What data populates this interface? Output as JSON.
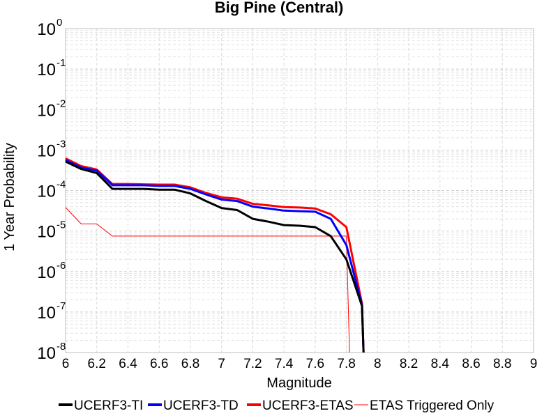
{
  "chart_data": {
    "type": "line",
    "title": "Big Pine (Central)",
    "xlabel": "Magnitude",
    "ylabel": "1 Year Probability",
    "xlim": [
      6,
      9
    ],
    "ylim": [
      1e-08,
      1
    ],
    "yscale": "log",
    "grid": true,
    "legend": "bottom",
    "x_ticks": [
      "6",
      "6.2",
      "6.4",
      "6.6",
      "6.8",
      "7",
      "7.2",
      "7.4",
      "7.6",
      "7.8",
      "8",
      "8.2",
      "8.4",
      "8.6",
      "8.8",
      "9"
    ],
    "y_ticks": [
      {
        "base": "10",
        "exp": "0"
      },
      {
        "base": "10",
        "exp": "-1"
      },
      {
        "base": "10",
        "exp": "-2"
      },
      {
        "base": "10",
        "exp": "-3"
      },
      {
        "base": "10",
        "exp": "-4"
      },
      {
        "base": "10",
        "exp": "-5"
      },
      {
        "base": "10",
        "exp": "-6"
      },
      {
        "base": "10",
        "exp": "-7"
      },
      {
        "base": "10",
        "exp": "-8"
      }
    ],
    "series": [
      {
        "name": "UCERF3-TI",
        "color": "#000000",
        "width": 3,
        "points": [
          [
            6.0,
            0.00052
          ],
          [
            6.1,
            0.00034
          ],
          [
            6.2,
            0.00027
          ],
          [
            6.3,
            0.00011
          ],
          [
            6.4,
            0.00011
          ],
          [
            6.5,
            0.00011
          ],
          [
            6.6,
            0.000105
          ],
          [
            6.7,
            0.000105
          ],
          [
            6.8,
            8.5e-05
          ],
          [
            6.9,
            5.5e-05
          ],
          [
            7.0,
            3.7e-05
          ],
          [
            7.1,
            3.3e-05
          ],
          [
            7.2,
            2e-05
          ],
          [
            7.3,
            1.7e-05
          ],
          [
            7.4,
            1.4e-05
          ],
          [
            7.5,
            1.35e-05
          ],
          [
            7.6,
            1.25e-05
          ],
          [
            7.7,
            7.5e-06
          ],
          [
            7.8,
            2e-06
          ],
          [
            7.9,
            1.4e-07
          ],
          [
            7.91,
            1e-08
          ]
        ]
      },
      {
        "name": "UCERF3-TD",
        "color": "#0000ff",
        "width": 3,
        "points": [
          [
            6.0,
            0.00057
          ],
          [
            6.1,
            0.00037
          ],
          [
            6.2,
            0.00031
          ],
          [
            6.3,
            0.000135
          ],
          [
            6.4,
            0.000135
          ],
          [
            6.5,
            0.000135
          ],
          [
            6.6,
            0.00013
          ],
          [
            6.7,
            0.00013
          ],
          [
            6.8,
            0.00011
          ],
          [
            6.9,
            8e-05
          ],
          [
            7.0,
            6e-05
          ],
          [
            7.1,
            5.5e-05
          ],
          [
            7.2,
            4e-05
          ],
          [
            7.3,
            3.6e-05
          ],
          [
            7.4,
            3.2e-05
          ],
          [
            7.5,
            3.1e-05
          ],
          [
            7.6,
            3e-05
          ],
          [
            7.7,
            2e-05
          ],
          [
            7.8,
            4.5e-06
          ],
          [
            7.9,
            1.5e-07
          ],
          [
            7.91,
            1e-08
          ]
        ]
      },
      {
        "name": "UCERF3-ETAS",
        "color": "#ff0000",
        "width": 3,
        "points": [
          [
            6.0,
            0.00062
          ],
          [
            6.1,
            0.0004
          ],
          [
            6.2,
            0.00033
          ],
          [
            6.3,
            0.000145
          ],
          [
            6.4,
            0.000145
          ],
          [
            6.5,
            0.000142
          ],
          [
            6.6,
            0.00014
          ],
          [
            6.7,
            0.00014
          ],
          [
            6.8,
            0.00012
          ],
          [
            6.9,
            8.7e-05
          ],
          [
            7.0,
            6.8e-05
          ],
          [
            7.1,
            6.3e-05
          ],
          [
            7.2,
            4.7e-05
          ],
          [
            7.3,
            4.3e-05
          ],
          [
            7.4,
            3.9e-05
          ],
          [
            7.5,
            3.8e-05
          ],
          [
            7.6,
            3.6e-05
          ],
          [
            7.7,
            2.6e-05
          ],
          [
            7.8,
            1.25e-05
          ],
          [
            7.9,
            1.6e-07
          ],
          [
            7.91,
            1e-08
          ]
        ]
      },
      {
        "name": "ETAS Triggered Only",
        "color": "#ff0000",
        "width": 1,
        "points": [
          [
            6.0,
            3.8e-05
          ],
          [
            6.1,
            1.5e-05
          ],
          [
            6.2,
            1.5e-05
          ],
          [
            6.3,
            7.5e-06
          ],
          [
            6.4,
            7.5e-06
          ],
          [
            6.5,
            7.5e-06
          ],
          [
            6.6,
            7.5e-06
          ],
          [
            6.7,
            7.5e-06
          ],
          [
            6.8,
            7.5e-06
          ],
          [
            6.9,
            7.5e-06
          ],
          [
            7.0,
            7.5e-06
          ],
          [
            7.1,
            7.5e-06
          ],
          [
            7.2,
            7.5e-06
          ],
          [
            7.3,
            7.5e-06
          ],
          [
            7.4,
            7.5e-06
          ],
          [
            7.5,
            7.5e-06
          ],
          [
            7.6,
            7.5e-06
          ],
          [
            7.7,
            7.5e-06
          ],
          [
            7.8,
            7.5e-06
          ],
          [
            7.82,
            1e-08
          ]
        ]
      }
    ]
  }
}
